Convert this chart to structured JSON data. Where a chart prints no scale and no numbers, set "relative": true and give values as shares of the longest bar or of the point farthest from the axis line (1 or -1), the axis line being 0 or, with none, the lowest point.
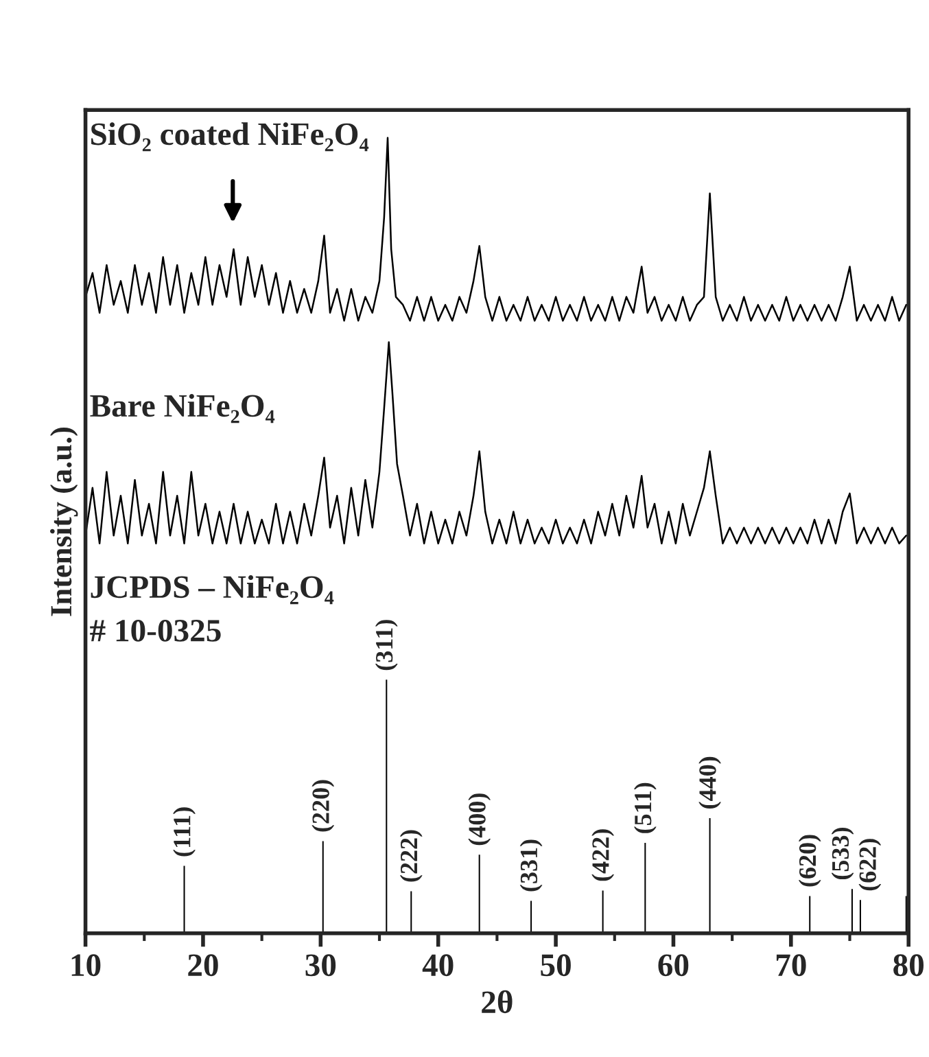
{
  "chart_data": {
    "type": "line",
    "relative": true,
    "xlabel": "2θ",
    "ylabel": "Intensity (a.u.)",
    "xlim": [
      10,
      80
    ],
    "xticks": [
      10,
      20,
      30,
      40,
      50,
      60,
      70,
      80
    ],
    "grid": false,
    "legend": false,
    "annotations": [
      "JCPDS – NiFe₂O₄",
      "# 10-0325",
      {
        "text": "(111)",
        "x": 18.4,
        "y": 0.086
      },
      {
        "text": "(220)",
        "x": 30.2,
        "y": 0.117
      },
      {
        "text": "(311)",
        "x": 35.6,
        "y": 0.32
      },
      {
        "text": "(222)",
        "x": 37.7,
        "y": 0.054
      },
      {
        "text": "(400)",
        "x": 43.5,
        "y": 0.1
      },
      {
        "text": "(331)",
        "x": 47.9,
        "y": 0.042
      },
      {
        "text": "(422)",
        "x": 54.0,
        "y": 0.055
      },
      {
        "text": "(511)",
        "x": 57.6,
        "y": 0.115
      },
      {
        "text": "(440)",
        "x": 63.1,
        "y": 0.146
      },
      {
        "text": "(620)",
        "x": 71.6,
        "y": 0.048
      },
      {
        "text": "(533)",
        "x": 75.2,
        "y": 0.057
      },
      {
        "text": "(622)",
        "x": 75.9,
        "y": 0.043
      }
    ],
    "series": [
      {
        "name": "SiO₂ coated NiFe₂O₄",
        "color": "#000000",
        "x": [
          10,
          10.6,
          11.2,
          11.8,
          12.4,
          13,
          13.6,
          14.2,
          14.8,
          15.4,
          16,
          16.6,
          17.2,
          17.8,
          18.4,
          19,
          19.6,
          20.2,
          20.8,
          21.4,
          22,
          22.6,
          23.2,
          23.8,
          24.4,
          25,
          25.6,
          26.2,
          26.8,
          27.4,
          28,
          28.6,
          29.2,
          29.8,
          30.3,
          30.8,
          31.4,
          32,
          32.6,
          33.2,
          33.8,
          34.4,
          35,
          35.4,
          35.7,
          36,
          36.4,
          37,
          37.6,
          38.2,
          38.8,
          39.4,
          40,
          40.6,
          41.2,
          41.8,
          42.4,
          43,
          43.5,
          44,
          44.6,
          45.2,
          45.8,
          46.4,
          47,
          47.6,
          48.2,
          48.8,
          49.4,
          50,
          50.6,
          51.2,
          51.8,
          52.4,
          53,
          53.6,
          54.2,
          54.8,
          55.4,
          56,
          56.6,
          57.3,
          57.8,
          58.4,
          59,
          59.6,
          60.2,
          60.8,
          61.4,
          62,
          62.6,
          63.1,
          63.6,
          64.2,
          64.8,
          65.4,
          66,
          66.6,
          67.2,
          67.8,
          68.4,
          69,
          69.6,
          70.2,
          70.8,
          71.4,
          72,
          72.6,
          73.2,
          73.8,
          74.4,
          75,
          75.6,
          76.2,
          76.8,
          77.4,
          78,
          78.6,
          79.2,
          79.8
        ],
        "values": [
          0.8,
          0.83,
          0.78,
          0.84,
          0.79,
          0.82,
          0.78,
          0.84,
          0.79,
          0.83,
          0.78,
          0.85,
          0.79,
          0.84,
          0.78,
          0.83,
          0.79,
          0.85,
          0.79,
          0.84,
          0.8,
          0.86,
          0.79,
          0.85,
          0.8,
          0.84,
          0.79,
          0.83,
          0.78,
          0.82,
          0.78,
          0.81,
          0.78,
          0.82,
          0.877,
          0.78,
          0.81,
          0.77,
          0.81,
          0.77,
          0.8,
          0.78,
          0.82,
          0.9,
          1.0,
          0.86,
          0.8,
          0.79,
          0.77,
          0.8,
          0.77,
          0.8,
          0.77,
          0.79,
          0.77,
          0.8,
          0.78,
          0.82,
          0.864,
          0.8,
          0.77,
          0.8,
          0.77,
          0.79,
          0.77,
          0.8,
          0.77,
          0.79,
          0.77,
          0.8,
          0.77,
          0.79,
          0.77,
          0.8,
          0.77,
          0.79,
          0.77,
          0.8,
          0.77,
          0.8,
          0.78,
          0.838,
          0.78,
          0.8,
          0.77,
          0.79,
          0.77,
          0.8,
          0.77,
          0.79,
          0.8,
          0.93,
          0.8,
          0.77,
          0.79,
          0.77,
          0.8,
          0.77,
          0.79,
          0.77,
          0.79,
          0.77,
          0.8,
          0.77,
          0.79,
          0.77,
          0.79,
          0.77,
          0.79,
          0.77,
          0.8,
          0.838,
          0.77,
          0.79,
          0.77,
          0.79,
          0.77,
          0.8,
          0.77,
          0.79
        ]
      },
      {
        "name": "Bare NiFe₂O₄",
        "color": "#000000",
        "x": [
          10,
          10.6,
          11.2,
          11.8,
          12.4,
          13,
          13.6,
          14.2,
          14.8,
          15.4,
          16,
          16.6,
          17.2,
          17.8,
          18.4,
          19,
          19.6,
          20.2,
          20.8,
          21.4,
          22,
          22.6,
          23.2,
          23.8,
          24.4,
          25,
          25.6,
          26.2,
          26.8,
          27.4,
          28,
          28.6,
          29.2,
          29.8,
          30.3,
          30.8,
          31.4,
          32,
          32.6,
          33.2,
          33.8,
          34.4,
          35,
          35.4,
          35.8,
          36.1,
          36.5,
          37,
          37.6,
          38.2,
          38.8,
          39.4,
          40,
          40.6,
          41.2,
          41.8,
          42.4,
          43,
          43.5,
          44,
          44.6,
          45.2,
          45.8,
          46.4,
          47,
          47.6,
          48.2,
          48.8,
          49.4,
          50,
          50.6,
          51.2,
          51.8,
          52.4,
          53,
          53.6,
          54.2,
          54.8,
          55.4,
          56,
          56.6,
          57.3,
          57.8,
          58.4,
          59,
          59.6,
          60.2,
          60.8,
          61.4,
          62,
          62.6,
          63.1,
          63.6,
          64.2,
          64.8,
          65.4,
          66,
          66.6,
          67.2,
          67.8,
          68.4,
          69,
          69.6,
          70.2,
          70.8,
          71.4,
          72,
          72.6,
          73.2,
          73.8,
          74.4,
          75,
          75.6,
          76.2,
          76.8,
          77.4,
          78,
          78.6,
          79.2,
          79.8
        ],
        "values": [
          0.5,
          0.56,
          0.49,
          0.58,
          0.5,
          0.55,
          0.49,
          0.57,
          0.5,
          0.54,
          0.49,
          0.58,
          0.5,
          0.55,
          0.49,
          0.58,
          0.5,
          0.54,
          0.49,
          0.53,
          0.49,
          0.54,
          0.49,
          0.53,
          0.49,
          0.52,
          0.49,
          0.54,
          0.49,
          0.53,
          0.49,
          0.54,
          0.5,
          0.55,
          0.598,
          0.51,
          0.55,
          0.49,
          0.56,
          0.5,
          0.57,
          0.51,
          0.58,
          0.66,
          0.743,
          0.68,
          0.59,
          0.55,
          0.5,
          0.54,
          0.49,
          0.53,
          0.49,
          0.52,
          0.49,
          0.53,
          0.5,
          0.55,
          0.606,
          0.53,
          0.49,
          0.52,
          0.49,
          0.53,
          0.49,
          0.52,
          0.49,
          0.51,
          0.49,
          0.52,
          0.49,
          0.51,
          0.49,
          0.52,
          0.49,
          0.53,
          0.5,
          0.54,
          0.5,
          0.55,
          0.51,
          0.575,
          0.51,
          0.54,
          0.49,
          0.53,
          0.49,
          0.54,
          0.5,
          0.53,
          0.56,
          0.606,
          0.55,
          0.49,
          0.51,
          0.49,
          0.51,
          0.49,
          0.51,
          0.49,
          0.51,
          0.49,
          0.51,
          0.49,
          0.51,
          0.49,
          0.52,
          0.49,
          0.52,
          0.49,
          0.53,
          0.553,
          0.49,
          0.51,
          0.49,
          0.51,
          0.49,
          0.51,
          0.49,
          0.5
        ]
      },
      {
        "type": "bar",
        "color": "#000000",
        "x": [
          18.4,
          30.2,
          35.6,
          37.7,
          43.5,
          47.9,
          54.0,
          57.6,
          63.1,
          71.6,
          75.2,
          75.9,
          79.8
        ],
        "values": [
          0.086,
          0.117,
          0.32,
          0.054,
          0.1,
          0.042,
          0.055,
          0.115,
          0.146,
          0.048,
          0.057,
          0.043,
          0.048
        ]
      }
    ]
  }
}
